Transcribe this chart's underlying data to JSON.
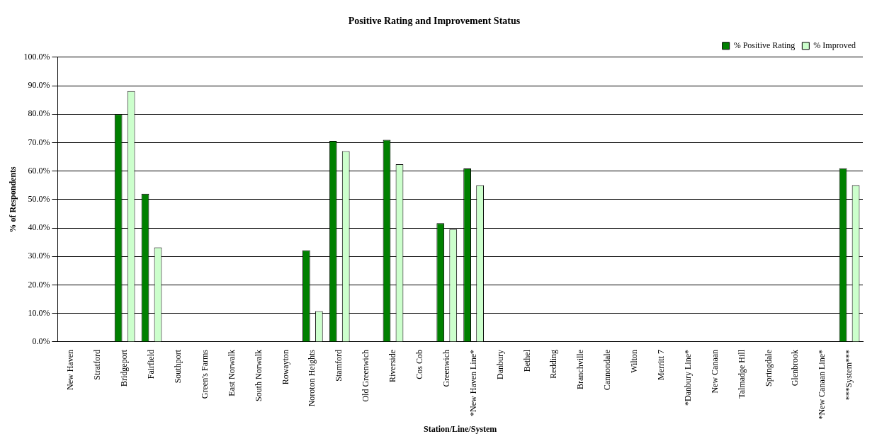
{
  "chart_data": {
    "type": "bar",
    "title": "Positive Rating and Improvement Status",
    "xlabel": "Station/Line/System",
    "ylabel": "% of Respondents",
    "categories": [
      "New Haven",
      "Stratford",
      "Bridgeport",
      "Fairfield",
      "Southport",
      "Green's Farms",
      "East Norwalk",
      "South Norwalk",
      "Rowayton",
      "Noroton Heights",
      "Stamford",
      "Old Greenwich",
      "Riverside",
      "Cos Cob",
      "Greenwich",
      "*New Haven Line*",
      "Danbury",
      "Bethel",
      "Redding",
      "Branchville",
      "Cannondale",
      "Wilton",
      "Merritt 7",
      "*Danbury Line*",
      "New Canaan",
      "Talmadge Hill",
      "Springdale",
      "Glenbrook",
      "*New Canaan Line*",
      "***System***"
    ],
    "series": [
      {
        "name": "% Positive Rating",
        "color": "#008000",
        "values": [
          null,
          null,
          80.0,
          52.0,
          null,
          null,
          null,
          null,
          null,
          32.2,
          70.6,
          null,
          71.0,
          null,
          41.7,
          60.9,
          null,
          null,
          null,
          null,
          null,
          null,
          null,
          null,
          null,
          null,
          null,
          null,
          null,
          61.0
        ]
      },
      {
        "name": "% Improved",
        "color": "#ccffcc",
        "values": [
          null,
          null,
          88.1,
          33.2,
          null,
          null,
          null,
          null,
          null,
          10.8,
          67.0,
          null,
          62.4,
          null,
          39.6,
          55.0,
          null,
          null,
          null,
          null,
          null,
          null,
          null,
          null,
          null,
          null,
          null,
          null,
          null,
          55.0
        ]
      }
    ],
    "ylim": [
      0,
      100
    ],
    "yticks": [
      {
        "value": 0,
        "label": "0.0%"
      },
      {
        "value": 10,
        "label": "10.0%"
      },
      {
        "value": 20,
        "label": "20.0%"
      },
      {
        "value": 30,
        "label": "30.0%"
      },
      {
        "value": 40,
        "label": "40.0%"
      },
      {
        "value": 50,
        "label": "50.0%"
      },
      {
        "value": 60,
        "label": "60.0%"
      },
      {
        "value": 70,
        "label": "70.0%"
      },
      {
        "value": 80,
        "label": "80.0%"
      },
      {
        "value": 90,
        "label": "90.0%"
      },
      {
        "value": 100,
        "label": "100.0%"
      }
    ],
    "grid": "y",
    "legend": "top right"
  }
}
